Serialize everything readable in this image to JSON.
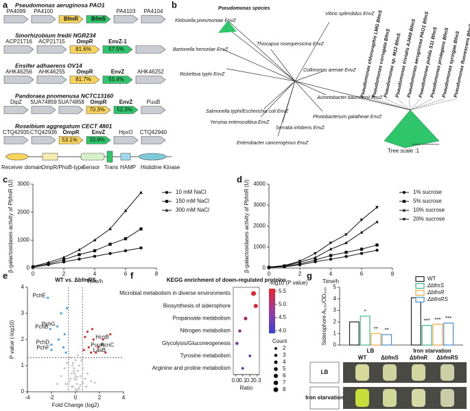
{
  "panel_labels": [
    "a",
    "b",
    "c",
    "d",
    "e",
    "f",
    "g"
  ],
  "gene_clusters": {
    "rows": [
      {
        "organism": "Pseudomonas aeruginosa PAO1",
        "genes": [
          {
            "label": "PA4099",
            "color": "#c9ccd3"
          },
          {
            "label": "PA4100",
            "color": "#c9ccd3"
          },
          {
            "label": "BfmR",
            "color": "#f7d35c"
          },
          {
            "label": "BfmS",
            "color": "#2fc56a"
          },
          {
            "label": "PA4103",
            "color": "#c9ccd3"
          },
          {
            "label": "PA4104",
            "color": "#c9ccd3"
          }
        ]
      },
      {
        "organism": "Sinorhizobium fredii NGR234",
        "genes": [
          {
            "label": "ACP21716",
            "color": "#c9ccd3"
          },
          {
            "label": "ACP21715",
            "color": "#c9ccd3"
          },
          {
            "label": "OmpR",
            "color": "#f7d35c",
            "identity": "81.6%"
          },
          {
            "label": "EnvZ-1",
            "color": "#2fc56a",
            "identity": "57.5%"
          },
          {
            "label": null,
            "color": "#c9ccd3"
          }
        ]
      },
      {
        "organism": "Ensifer adhaerens OV14",
        "genes": [
          {
            "label": "AHK46256",
            "color": "#c9ccd3"
          },
          {
            "label": "AHK46255",
            "color": "#c9ccd3"
          },
          {
            "label": "OmpR",
            "color": "#f7d35c",
            "identity": "81.7%"
          },
          {
            "label": "EnvZ",
            "color": "#2fc56a",
            "identity": "55.4%"
          },
          {
            "label": "AHK46252",
            "color": "#c9ccd3"
          }
        ]
      },
      {
        "organism": "Pandoraea pnomenusa NCTC13160",
        "genes": [
          {
            "label": "DipZ",
            "color": "#c9ccd3"
          },
          {
            "label": "SUA74859",
            "color": "#c9ccd3"
          },
          {
            "label": "SUA74858",
            "color": "#c9ccd3"
          },
          {
            "label": "OmpR",
            "color": "#f7d35c",
            "identity": "70.3%"
          },
          {
            "label": "EnvZ",
            "color": "#2fc56a",
            "identity": "52.3%"
          },
          {
            "label": "PuuB",
            "color": "#c9ccd3"
          }
        ]
      },
      {
        "organism": "Roseibium aggregatum CECT 4801",
        "genes": [
          {
            "label": "CTQ42935",
            "color": "#c9ccd3"
          },
          {
            "label": "CTQ42936",
            "color": "#c9ccd3"
          },
          {
            "label": "OmpR",
            "color": "#f7d35c",
            "identity": "53.1%"
          },
          {
            "label": "EnvZ",
            "color": "#2fc56a",
            "identity": "33.8%"
          },
          {
            "label": "HpxO",
            "color": "#c9ccd3"
          },
          {
            "label": "CTQ42940",
            "color": "#c9ccd3"
          }
        ]
      }
    ],
    "domains": [
      "Receiver domain",
      "OmpR/PhoB-type",
      "Sensor",
      "Trans",
      "HAMP",
      "Histidine Kinase"
    ]
  },
  "tree": {
    "labels": [
      {
        "text": "Klebsiella pneumoniae EnvZ",
        "color": "#111111"
      },
      {
        "text": "Pseudomonas species",
        "color": "#e3262b"
      },
      {
        "text": "Vibrio splendidus EnvZ",
        "color": "#111111"
      },
      {
        "text": "Bartonella henselae EnvZ",
        "color": "#111111"
      },
      {
        "text": "Thiocapsa roseopersicina EnvZ",
        "color": "#111111"
      },
      {
        "text": "Rickettsia typhi EnvZ",
        "color": "#111111"
      },
      {
        "text": "Collimonas arenae EnvZ",
        "color": "#111111"
      },
      {
        "text": "Acinetobacter baumannii EnvZ",
        "color": "#111111"
      },
      {
        "text": "Photobacterium galatheae EnvZ",
        "color": "#111111"
      },
      {
        "text": "Salmonella typhi/Escherichia coli EnvZ",
        "color": "#111111"
      },
      {
        "text": "Serratia inhibens EnvZ",
        "color": "#111111"
      },
      {
        "text": "Yersinia enterocolitica EnvZ",
        "color": "#111111"
      },
      {
        "text": "Enterobacter cancerogenus EnvZ",
        "color": "#111111"
      }
    ],
    "pseudomonas_leaves": [
      {
        "text": "Pseudomonas chlororaphis LMG BfmS",
        "color": "#111111"
      },
      {
        "text": "Pseudomonas corrugata BfmS",
        "color": "#111111"
      },
      {
        "text": "Pseudomonas sp. M12 BfmS",
        "color": "#111111"
      },
      {
        "text": "Pseudomonas trivialis AJ449 BfmS",
        "color": "#111111"
      },
      {
        "text": "Pseudomonas aeruginosa PAO1 BfmS",
        "color": "#e3262b"
      },
      {
        "text": "Pseudomonas putida S11 BfmS",
        "color": "#111111"
      },
      {
        "text": "Pseudomonas protegens BfmS",
        "color": "#111111"
      },
      {
        "text": "Pseudomonas syringae BfmS",
        "color": "#111111"
      },
      {
        "text": "Pseudomonas fluorescens BfmS",
        "color": "#111111"
      }
    ],
    "scale": "Tree scale :1"
  },
  "chart_data": [
    {
      "type": "line",
      "x_label": "Time/h",
      "y_label": "β-galactosidases activity of PbfmR (U)",
      "x": [
        0,
        1,
        2,
        3,
        4,
        5,
        6,
        7
      ],
      "xlim": [
        0,
        8
      ],
      "xticks": [
        0,
        2,
        4,
        6,
        8
      ],
      "ylim": [
        0,
        3000
      ],
      "yticks": [
        0,
        1000,
        2000,
        3000
      ],
      "series": [
        {
          "name": "10 mM NaCl",
          "color": "#111111",
          "marker": "circle",
          "values": [
            30,
            120,
            220,
            320,
            420,
            520,
            620,
            720
          ]
        },
        {
          "name": "150 mM NaCl",
          "color": "#111111",
          "marker": "square",
          "values": [
            40,
            150,
            300,
            480,
            620,
            850,
            1050,
            1400
          ]
        },
        {
          "name": "300 mM NaCl",
          "color": "#111111",
          "marker": "triangle",
          "values": [
            60,
            200,
            380,
            650,
            1000,
            1400,
            2050,
            2700
          ]
        }
      ]
    },
    {
      "type": "line",
      "x_label": "Time/h",
      "y_label": "β-galactosidases activity of PbfmR (U)",
      "x": [
        0,
        1,
        2,
        3,
        4,
        5,
        6,
        7
      ],
      "xlim": [
        0,
        8
      ],
      "xticks": [
        0,
        2,
        4,
        6,
        8
      ],
      "ylim": [
        0,
        4000
      ],
      "yticks": [
        0,
        1000,
        2000,
        3000,
        4000
      ],
      "series": [
        {
          "name": "1% sucrose",
          "color": "#111111",
          "marker": "circle",
          "values": [
            20,
            60,
            150,
            300,
            420,
            550,
            700,
            850
          ]
        },
        {
          "name": "5% sucrose",
          "color": "#111111",
          "marker": "square",
          "values": [
            30,
            80,
            200,
            380,
            600,
            750,
            900,
            1100
          ]
        },
        {
          "name": "10% sucrose",
          "color": "#111111",
          "marker": "triangle",
          "values": [
            40,
            100,
            280,
            500,
            900,
            1200,
            1700,
            2200
          ]
        },
        {
          "name": "20% sucrose",
          "color": "#111111",
          "marker": "inverted-triangle",
          "values": [
            50,
            120,
            330,
            700,
            1200,
            1600,
            2300,
            2900
          ]
        }
      ]
    },
    {
      "type": "scatter",
      "title": "WT vs. ΔbfmRS",
      "x_label": "Fold Change (log2)",
      "y_label": "P value (-log10)",
      "xlim": [
        -4,
        4
      ],
      "xticks": [
        -4,
        -2,
        0,
        2,
        4
      ],
      "ylim": [
        0,
        4
      ],
      "yticks": [
        0,
        1,
        2,
        3,
        4
      ],
      "thresholds": {
        "x": [
          -0.58,
          0.58
        ],
        "y": 1.3
      },
      "series": [
        {
          "color": "#c8c8c8",
          "x": [
            -1.2,
            -0.9,
            -0.7,
            -0.5,
            -0.4,
            -0.3,
            -0.2,
            -0.1,
            0,
            0.1,
            0.2,
            0.3,
            0.4,
            0.5,
            0.6,
            0.8,
            1.0,
            1.3,
            -0.6,
            -0.3,
            0,
            0.3,
            0.6,
            -0.2,
            0.2,
            -0.1,
            0.1,
            0,
            -0.4,
            0.4,
            -0.8,
            0.9,
            -1.5,
            1.6,
            -0.05,
            0.05,
            -0.25,
            0.25,
            0.15,
            -0.15
          ],
          "values": [
            0.6,
            0.9,
            1.1,
            0.4,
            1.3,
            0.7,
            0.2,
            0.5,
            0.1,
            0.3,
            0.8,
            1.0,
            0.6,
            1.2,
            0.9,
            0.5,
            0.7,
            0.4,
            0.3,
            0.2,
            0.6,
            0.15,
            0.35,
            1.1,
            1.4,
            0.9,
            0.05,
            1.2,
            0.5,
            0.25,
            0.3,
            0.2,
            0.3,
            0.35,
            0.7,
            0.45,
            1.0,
            0.1,
            0.55,
            0.8
          ]
        },
        {
          "color": "#4f9fdc",
          "x": [
            -2.3,
            -2.1,
            -1.5,
            -2.0,
            -2.0,
            -1.2,
            -0.9,
            -1.0,
            -0.8,
            -1.4,
            -0.7
          ],
          "values": [
            3.6,
            2.4,
            2.5,
            1.8,
            1.6,
            3.0,
            2.2,
            1.7,
            1.5,
            2.0,
            3.2
          ],
          "labels": [
            "PchE",
            "PchB",
            "PchG",
            "PchD",
            "PchF",
            null,
            null,
            null,
            null,
            null,
            null
          ]
        },
        {
          "color": "#e0262e",
          "x": [
            1.5,
            1.9,
            1.1,
            1.3,
            0.8,
            1.0,
            1.4,
            2.3,
            2.9,
            0.7,
            1.7,
            2.5
          ],
          "values": [
            2.0,
            1.7,
            1.7,
            1.5,
            2.1,
            2.3,
            2.4,
            2.0,
            2.2,
            1.6,
            1.5,
            1.5
          ],
          "labels": [
            "HcnB",
            "HcnC",
            "PuuA",
            "LasB",
            null,
            null,
            null,
            null,
            null,
            null,
            null,
            null
          ]
        }
      ]
    },
    {
      "type": "dot",
      "title": "KEGG enrichment of down-regulated proteins",
      "x_label": "Ratio",
      "categories": [
        "Microbial metabolism in diverse environments",
        "Biosynthesis of siderophore",
        "Propanoate metabolism",
        "Nitrogen metabolism",
        "Glycolysis/Gluconeogenesis",
        "Tyrosine metabolism",
        "Arginine and proline metabolism"
      ],
      "values": [
        0.25,
        0.28,
        0.14,
        0.06,
        0.02,
        0.2,
        0.1
      ],
      "counts": [
        8,
        6,
        4,
        3,
        3,
        2,
        2
      ],
      "pvalues": [
        5.5,
        5.4,
        5.0,
        4.7,
        4.5,
        4.3,
        4.1
      ],
      "xlim": [
        -0.03,
        0.33
      ],
      "xticks": [
        {
          "value": 0,
          "label": "0.0"
        },
        {
          "value": 0.1,
          "label": "0.1"
        },
        {
          "value": 0.2,
          "label": "0.2"
        },
        {
          "value": 0.3,
          "label": "0.3"
        }
      ],
      "color_title": "-log10 (P value)",
      "colorscale": [
        "#3b40cf",
        "#e8262a"
      ],
      "clim": [
        3.9,
        5.6
      ],
      "color_ticks": [
        {
          "value": 4,
          "label": "4.0"
        },
        {
          "value": 4.5,
          "label": "4.5"
        },
        {
          "value": 5,
          "label": "5.0"
        },
        {
          "value": 5.5,
          "label": "5.5"
        }
      ],
      "size_title": "Count",
      "size_ticks": [
        2,
        3,
        4,
        5,
        6,
        7,
        8
      ]
    },
    {
      "type": "bar",
      "y_label": "Siderophore A₆₃₀/OD₆₀₀",
      "categories": [
        "LB",
        "Iron starvation"
      ],
      "ylim": [
        0,
        5
      ],
      "yticks": [
        0,
        1,
        2,
        3,
        4,
        5
      ],
      "series": [
        {
          "name": "WT",
          "color": "#222222",
          "values": [
            2.0,
            4.1
          ],
          "significance": [
            null,
            null
          ]
        },
        {
          "name": "ΔbfmS",
          "color": "#3cb88a",
          "values": [
            2.5,
            1.7
          ],
          "significance": [
            "*",
            "***"
          ]
        },
        {
          "name": "ΔbfmR",
          "color": "#f5a742",
          "values": [
            1.0,
            1.8
          ],
          "significance": [
            "**",
            "***"
          ]
        },
        {
          "name": "ΔbfmRS",
          "color": "#3d8fd6",
          "values": [
            0.9,
            1.9
          ],
          "significance": [
            "**",
            "***"
          ]
        }
      ],
      "photo": {
        "columns": [
          "WT",
          "ΔbfmS",
          "ΔbfmR",
          "ΔbfmRS"
        ],
        "rows": [
          "LB",
          "Iron starvation"
        ]
      }
    }
  ]
}
